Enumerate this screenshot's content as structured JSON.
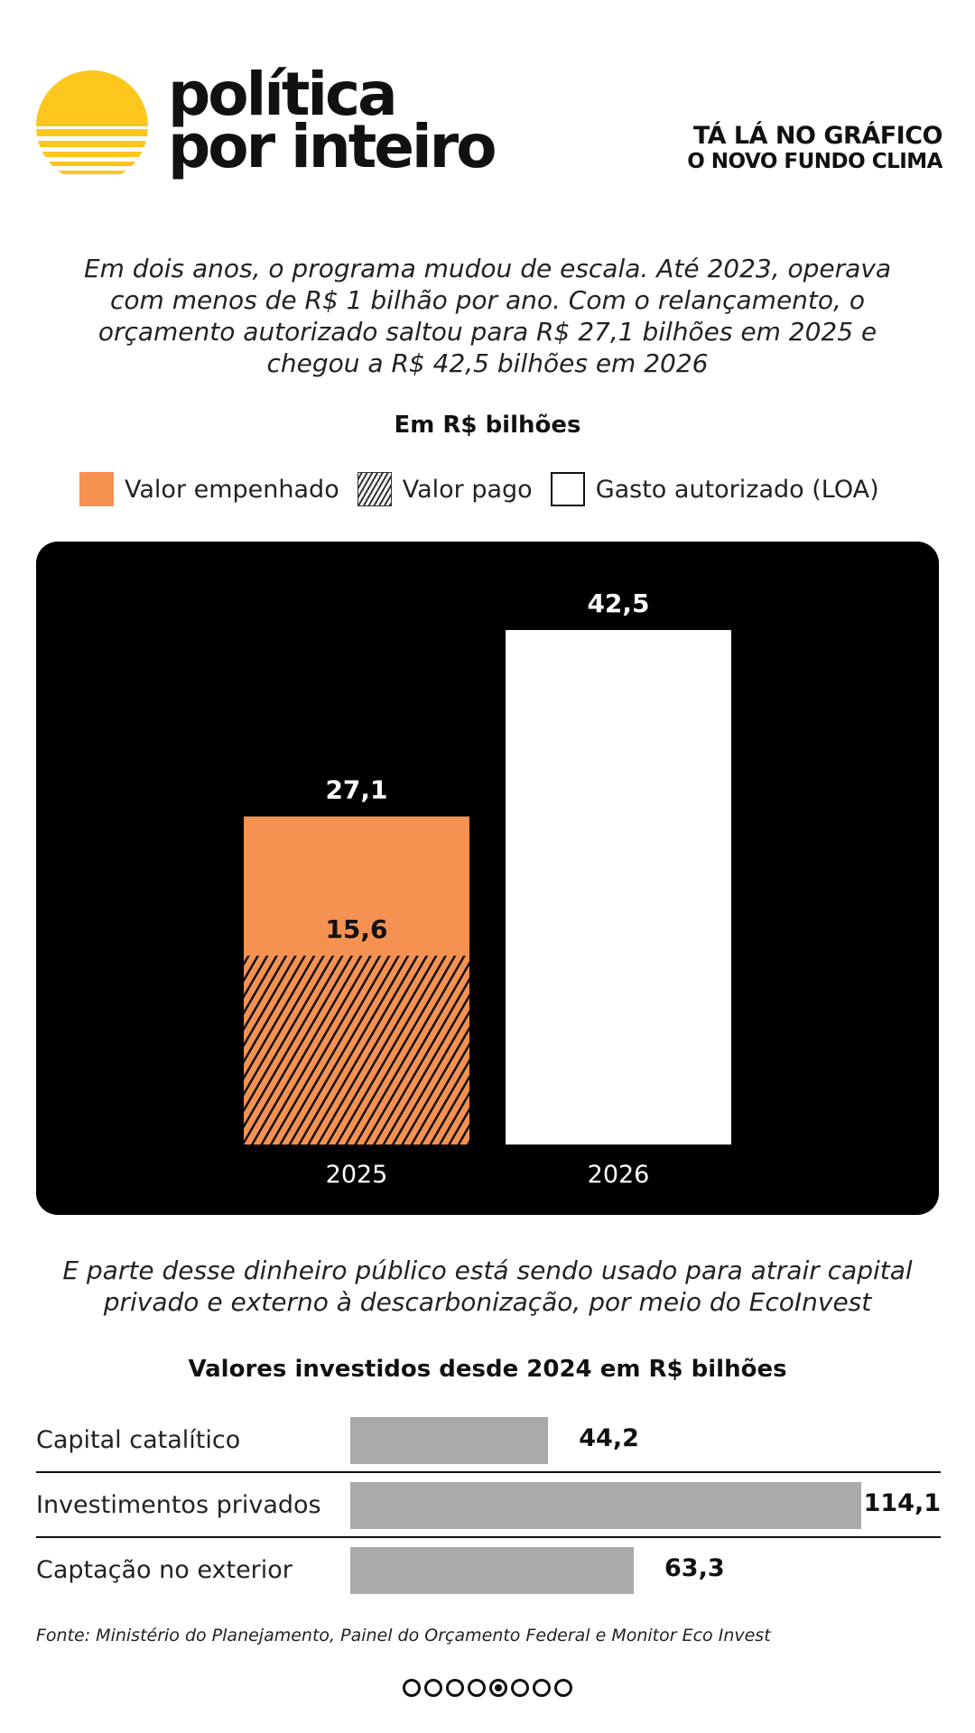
{
  "header": {
    "brand_line1": "política",
    "brand_line2": "por inteiro",
    "kicker_line1": "TÁ LÁ NO GRÁFICO",
    "kicker_line2": "O NOVO FUNDO CLIMA"
  },
  "intro": "Em dois anos, o programa mudou de escala. Até 2023, operava com menos de R$ 1 bilhão por ano. Com o relançamento, o orçamento autorizado saltou para R$ 27,1 bilhões em 2025 e chegou a R$ 42,5 bilhões em 2026",
  "units_label": "Em R$ bilhões",
  "legend": {
    "empenhado": "Valor empenhado",
    "pago": "Valor pago",
    "loa": "Gasto autorizado (LOA)"
  },
  "colors": {
    "empenhado": "#f59151",
    "pago_hatch": "#111111",
    "loa": "#ffffff",
    "panel": "#000000",
    "hbar": "#aaaaaa",
    "logo_sun": "#fcc61d"
  },
  "chart_data": [
    {
      "type": "bar",
      "categories": [
        "2025",
        "2026"
      ],
      "series": [
        {
          "name": "Valor pago",
          "values": [
            15.6,
            null
          ]
        },
        {
          "name": "Valor empenhado",
          "values": [
            27.1,
            null
          ]
        },
        {
          "name": "Gasto autorizado (LOA)",
          "values": [
            null,
            42.5
          ]
        }
      ],
      "data_labels": {
        "2025_top": "27,1",
        "2025_pago": "15,6",
        "2026_top": "42,5"
      },
      "title": "Em R$ bilhões",
      "ylim": [
        0,
        42.5
      ],
      "grid": false,
      "legend_position": "top"
    },
    {
      "type": "bar",
      "orientation": "horizontal",
      "title": "Valores investidos desde 2024 em R$ bilhões",
      "categories": [
        "Capital catalítico",
        "Investimentos privados",
        "Captação no exterior"
      ],
      "values": [
        44.2,
        114.1,
        63.3
      ],
      "value_labels": [
        "44,2",
        "114,1",
        "63,3"
      ],
      "xlim": [
        0,
        114.1
      ]
    }
  ],
  "intro2": "E parte desse dinheiro público está sendo usado para atrair capital privado e externo à descarbonização, por meio do EcoInvest",
  "source": "Fonte: Ministério do Planejamento, Painel do Orçamento Federal e Monitor Eco Invest",
  "pagination": {
    "total": 8,
    "current": 5
  }
}
